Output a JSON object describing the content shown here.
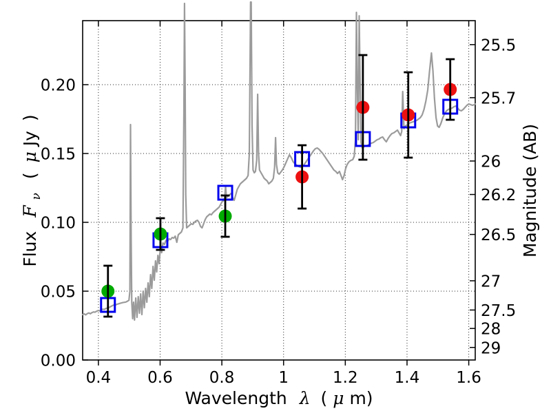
{
  "chart_data": {
    "type": "line+scatter",
    "title": "",
    "xlabel": "Wavelength λ (μm)",
    "ylabel_left": "Flux Fν ( μJy )",
    "ylabel_right": "Magnitude (AB)",
    "xlabel_parts": {
      "wavelength": "Wavelength",
      "lambda": "λ",
      "open": "(",
      "mu": "μ",
      "mclose": "m)"
    },
    "ylabel_left_parts": {
      "flux": "Flux",
      "f": "F",
      "nu": "ν",
      "open": "(",
      "mu": "μ",
      "jy": "Jy",
      "close": ")"
    },
    "xlim": [
      0.349,
      1.621
    ],
    "ylim_flux": [
      0.0,
      0.2465
    ],
    "x_ticks": [
      0.4,
      0.6,
      0.8,
      1.0,
      1.2,
      1.4,
      1.6
    ],
    "x_tick_labels": [
      "0.4",
      "0.6",
      "0.8",
      "1",
      "1.2",
      "1.4",
      "1.6"
    ],
    "y_ticks_flux": [
      0.0,
      0.05,
      0.1,
      0.15,
      0.2
    ],
    "y_tick_labels_flux": [
      "0.00",
      "0.05",
      "0.10",
      "0.15",
      "0.20"
    ],
    "y_ticks_mag": [
      25.5,
      25.7,
      26,
      26.2,
      26.5,
      27,
      27.5,
      28,
      29
    ],
    "y_tick_labels_mag": [
      "25.5",
      "25.7",
      "26",
      "26.2",
      "26.5",
      "27",
      "27.5",
      "28",
      "29"
    ],
    "ab_magnitude_zeropoint_ujy": 23.9,
    "grid": {
      "style": "dotted",
      "color": "#000000"
    },
    "legend": "none",
    "colors": {
      "spectrum": "#9B9B9B",
      "blue_squares": "#0000EE",
      "green_circles": "#00AA00",
      "red_circles": "#ED1111",
      "errorbar": "#000000",
      "frame": "#000000",
      "background": "#FFFFFF"
    },
    "series": {
      "blue_open_squares": {
        "label": "blue open squares (model photometry)",
        "marker": "open-square",
        "points": [
          [
            0.431,
            0.04
          ],
          [
            0.601,
            0.087
          ],
          [
            0.811,
            0.1215
          ],
          [
            1.06,
            0.146
          ],
          [
            1.257,
            0.1605
          ],
          [
            1.404,
            0.174
          ],
          [
            1.54,
            0.184
          ]
        ]
      },
      "green_filled_circles": {
        "label": "green filled circles with error bars",
        "marker": "filled-circle",
        "points_flux_err": [
          [
            0.431,
            0.05,
            0.0185
          ],
          [
            0.601,
            0.0915,
            0.0115
          ],
          [
            0.811,
            0.1045,
            0.015
          ]
        ]
      },
      "red_filled_circles": {
        "label": "red filled circles with error bars",
        "marker": "filled-circle",
        "points_flux_err": [
          [
            1.06,
            0.133,
            0.023
          ],
          [
            1.257,
            0.1835,
            0.038
          ],
          [
            1.404,
            0.178,
            0.031
          ],
          [
            1.54,
            0.1965,
            0.022
          ]
        ]
      },
      "spectrum_line": {
        "label": "gray model spectrum",
        "points": [
          [
            0.349,
            0.033
          ],
          [
            0.354,
            0.0335
          ],
          [
            0.359,
            0.0328
          ],
          [
            0.364,
            0.0337
          ],
          [
            0.369,
            0.0342
          ],
          [
            0.374,
            0.0336
          ],
          [
            0.379,
            0.0344
          ],
          [
            0.384,
            0.0349
          ],
          [
            0.389,
            0.0347
          ],
          [
            0.394,
            0.0354
          ],
          [
            0.399,
            0.0359
          ],
          [
            0.404,
            0.0357
          ],
          [
            0.409,
            0.0364
          ],
          [
            0.414,
            0.0369
          ],
          [
            0.419,
            0.0367
          ],
          [
            0.424,
            0.0374
          ],
          [
            0.429,
            0.0377
          ],
          [
            0.434,
            0.0381
          ],
          [
            0.439,
            0.0387
          ],
          [
            0.444,
            0.0393
          ],
          [
            0.449,
            0.0399
          ],
          [
            0.454,
            0.0397
          ],
          [
            0.459,
            0.0404
          ],
          [
            0.464,
            0.0407
          ],
          [
            0.469,
            0.0411
          ],
          [
            0.474,
            0.0414
          ],
          [
            0.479,
            0.0417
          ],
          [
            0.484,
            0.0419
          ],
          [
            0.489,
            0.0421
          ],
          [
            0.494,
            0.0427
          ],
          [
            0.499,
            0.0434
          ],
          [
            0.502,
            0.05
          ],
          [
            0.504,
            0.171
          ],
          [
            0.506,
            0.09
          ],
          [
            0.508,
            0.042
          ],
          [
            0.511,
            0.03
          ],
          [
            0.514,
            0.042
          ],
          [
            0.517,
            0.029
          ],
          [
            0.521,
            0.045
          ],
          [
            0.525,
            0.031
          ],
          [
            0.529,
            0.046
          ],
          [
            0.533,
            0.034
          ],
          [
            0.537,
            0.048
          ],
          [
            0.541,
            0.033
          ],
          [
            0.545,
            0.05
          ],
          [
            0.549,
            0.038
          ],
          [
            0.553,
            0.052
          ],
          [
            0.557,
            0.042
          ],
          [
            0.561,
            0.056
          ],
          [
            0.565,
            0.046
          ],
          [
            0.569,
            0.062
          ],
          [
            0.573,
            0.052
          ],
          [
            0.577,
            0.068
          ],
          [
            0.581,
            0.058
          ],
          [
            0.585,
            0.072
          ],
          [
            0.589,
            0.064
          ],
          [
            0.593,
            0.076
          ],
          [
            0.597,
            0.07
          ],
          [
            0.601,
            0.082
          ],
          [
            0.605,
            0.078
          ],
          [
            0.609,
            0.085
          ],
          [
            0.614,
            0.084
          ],
          [
            0.619,
            0.087
          ],
          [
            0.624,
            0.086
          ],
          [
            0.629,
            0.088
          ],
          [
            0.634,
            0.0875
          ],
          [
            0.639,
            0.089
          ],
          [
            0.644,
            0.0885
          ],
          [
            0.649,
            0.09
          ],
          [
            0.654,
            0.0855
          ],
          [
            0.659,
            0.091
          ],
          [
            0.664,
            0.092
          ],
          [
            0.669,
            0.093
          ],
          [
            0.674,
            0.096
          ],
          [
            0.677,
            0.18
          ],
          [
            0.679,
            0.259
          ],
          [
            0.681,
            0.2
          ],
          [
            0.683,
            0.12
          ],
          [
            0.686,
            0.096
          ],
          [
            0.691,
            0.097
          ],
          [
            0.696,
            0.098
          ],
          [
            0.701,
            0.099
          ],
          [
            0.706,
            0.0985
          ],
          [
            0.711,
            0.1
          ],
          [
            0.716,
            0.101
          ],
          [
            0.721,
            0.1015
          ],
          [
            0.726,
            0.1
          ],
          [
            0.731,
            0.097
          ],
          [
            0.736,
            0.096
          ],
          [
            0.741,
            0.099
          ],
          [
            0.746,
            0.102
          ],
          [
            0.751,
            0.104
          ],
          [
            0.756,
            0.105
          ],
          [
            0.761,
            0.106
          ],
          [
            0.766,
            0.1055
          ],
          [
            0.771,
            0.107
          ],
          [
            0.776,
            0.108
          ],
          [
            0.781,
            0.109
          ],
          [
            0.786,
            0.11
          ],
          [
            0.791,
            0.111
          ],
          [
            0.796,
            0.113
          ],
          [
            0.801,
            0.115
          ],
          [
            0.806,
            0.116
          ],
          [
            0.809,
            0.117
          ],
          [
            0.812,
            0.1265
          ],
          [
            0.815,
            0.118
          ],
          [
            0.82,
            0.119
          ],
          [
            0.825,
            0.12
          ],
          [
            0.83,
            0.121
          ],
          [
            0.835,
            0.118
          ],
          [
            0.84,
            0.116
          ],
          [
            0.845,
            0.12
          ],
          [
            0.85,
            0.124
          ],
          [
            0.855,
            0.126
          ],
          [
            0.86,
            0.128
          ],
          [
            0.865,
            0.129
          ],
          [
            0.87,
            0.13
          ],
          [
            0.875,
            0.131
          ],
          [
            0.88,
            0.132
          ],
          [
            0.885,
            0.134
          ],
          [
            0.889,
            0.15
          ],
          [
            0.893,
            0.26
          ],
          [
            0.895,
            0.26
          ],
          [
            0.898,
            0.17
          ],
          [
            0.901,
            0.138
          ],
          [
            0.905,
            0.136
          ],
          [
            0.909,
            0.137
          ],
          [
            0.913,
            0.145
          ],
          [
            0.916,
            0.193
          ],
          [
            0.919,
            0.15
          ],
          [
            0.922,
            0.138
          ],
          [
            0.927,
            0.136
          ],
          [
            0.932,
            0.134
          ],
          [
            0.937,
            0.132
          ],
          [
            0.942,
            0.131
          ],
          [
            0.947,
            0.13
          ],
          [
            0.952,
            0.128
          ],
          [
            0.957,
            0.129
          ],
          [
            0.962,
            0.13
          ],
          [
            0.967,
            0.132
          ],
          [
            0.971,
            0.14
          ],
          [
            0.974,
            0.1615
          ],
          [
            0.977,
            0.142
          ],
          [
            0.981,
            0.136
          ],
          [
            0.986,
            0.135
          ],
          [
            0.991,
            0.1365
          ],
          [
            0.996,
            0.138
          ],
          [
            1.001,
            0.14
          ],
          [
            1.007,
            0.143
          ],
          [
            1.013,
            0.146
          ],
          [
            1.019,
            0.149
          ],
          [
            1.025,
            0.147
          ],
          [
            1.031,
            0.144
          ],
          [
            1.037,
            0.1425
          ],
          [
            1.043,
            0.1415
          ],
          [
            1.049,
            0.1405
          ],
          [
            1.055,
            0.14
          ],
          [
            1.061,
            0.1405
          ],
          [
            1.067,
            0.142
          ],
          [
            1.073,
            0.144
          ],
          [
            1.079,
            0.146
          ],
          [
            1.085,
            0.148
          ],
          [
            1.091,
            0.15
          ],
          [
            1.097,
            0.152
          ],
          [
            1.103,
            0.1535
          ],
          [
            1.109,
            0.154
          ],
          [
            1.115,
            0.153
          ],
          [
            1.121,
            0.1515
          ],
          [
            1.127,
            0.15
          ],
          [
            1.133,
            0.148
          ],
          [
            1.139,
            0.146
          ],
          [
            1.145,
            0.144
          ],
          [
            1.151,
            0.142
          ],
          [
            1.157,
            0.14
          ],
          [
            1.163,
            0.138
          ],
          [
            1.169,
            0.137
          ],
          [
            1.175,
            0.1355
          ],
          [
            1.181,
            0.137
          ],
          [
            1.186,
            0.134
          ],
          [
            1.191,
            0.131
          ],
          [
            1.196,
            0.134
          ],
          [
            1.201,
            0.139
          ],
          [
            1.206,
            0.142
          ],
          [
            1.212,
            0.144
          ],
          [
            1.218,
            0.145
          ],
          [
            1.224,
            0.1455
          ],
          [
            1.229,
            0.148
          ],
          [
            1.233,
            0.16
          ],
          [
            1.236,
            0.2525
          ],
          [
            1.239,
            0.2
          ],
          [
            1.242,
            0.16
          ],
          [
            1.245,
            0.25
          ],
          [
            1.248,
            0.2
          ],
          [
            1.251,
            0.158
          ],
          [
            1.255,
            0.154
          ],
          [
            1.261,
            0.155
          ],
          [
            1.267,
            0.1555
          ],
          [
            1.273,
            0.156
          ],
          [
            1.279,
            0.157
          ],
          [
            1.285,
            0.1575
          ],
          [
            1.291,
            0.158
          ],
          [
            1.297,
            0.159
          ],
          [
            1.303,
            0.16
          ],
          [
            1.309,
            0.1605
          ],
          [
            1.315,
            0.1615
          ],
          [
            1.321,
            0.162
          ],
          [
            1.327,
            0.16
          ],
          [
            1.333,
            0.1585
          ],
          [
            1.339,
            0.161
          ],
          [
            1.345,
            0.163
          ],
          [
            1.351,
            0.1645
          ],
          [
            1.357,
            0.165
          ],
          [
            1.363,
            0.166
          ],
          [
            1.369,
            0.167
          ],
          [
            1.374,
            0.165
          ],
          [
            1.379,
            0.163
          ],
          [
            1.383,
            0.166
          ],
          [
            1.386,
            0.195
          ],
          [
            1.39,
            0.168
          ],
          [
            1.395,
            0.17
          ],
          [
            1.401,
            0.171
          ],
          [
            1.407,
            0.172
          ],
          [
            1.413,
            0.1725
          ],
          [
            1.419,
            0.173
          ],
          [
            1.425,
            0.1735
          ],
          [
            1.431,
            0.174
          ],
          [
            1.437,
            0.175
          ],
          [
            1.443,
            0.176
          ],
          [
            1.449,
            0.178
          ],
          [
            1.455,
            0.182
          ],
          [
            1.461,
            0.188
          ],
          [
            1.467,
            0.196
          ],
          [
            1.473,
            0.21
          ],
          [
            1.479,
            0.223
          ],
          [
            1.484,
            0.21
          ],
          [
            1.489,
            0.19
          ],
          [
            1.494,
            0.176
          ],
          [
            1.499,
            0.17
          ],
          [
            1.504,
            0.169
          ],
          [
            1.51,
            0.172
          ],
          [
            1.516,
            0.176
          ],
          [
            1.522,
            0.179
          ],
          [
            1.528,
            0.181
          ],
          [
            1.534,
            0.182
          ],
          [
            1.54,
            0.1825
          ],
          [
            1.546,
            0.183
          ],
          [
            1.552,
            0.184
          ],
          [
            1.558,
            0.1845
          ],
          [
            1.564,
            0.183
          ],
          [
            1.57,
            0.1815
          ],
          [
            1.576,
            0.181
          ],
          [
            1.582,
            0.182
          ],
          [
            1.588,
            0.1835
          ],
          [
            1.594,
            0.185
          ],
          [
            1.6,
            0.186
          ],
          [
            1.606,
            0.1855
          ],
          [
            1.612,
            0.185
          ],
          [
            1.618,
            0.1855
          ],
          [
            1.621,
            0.186
          ]
        ]
      }
    }
  }
}
